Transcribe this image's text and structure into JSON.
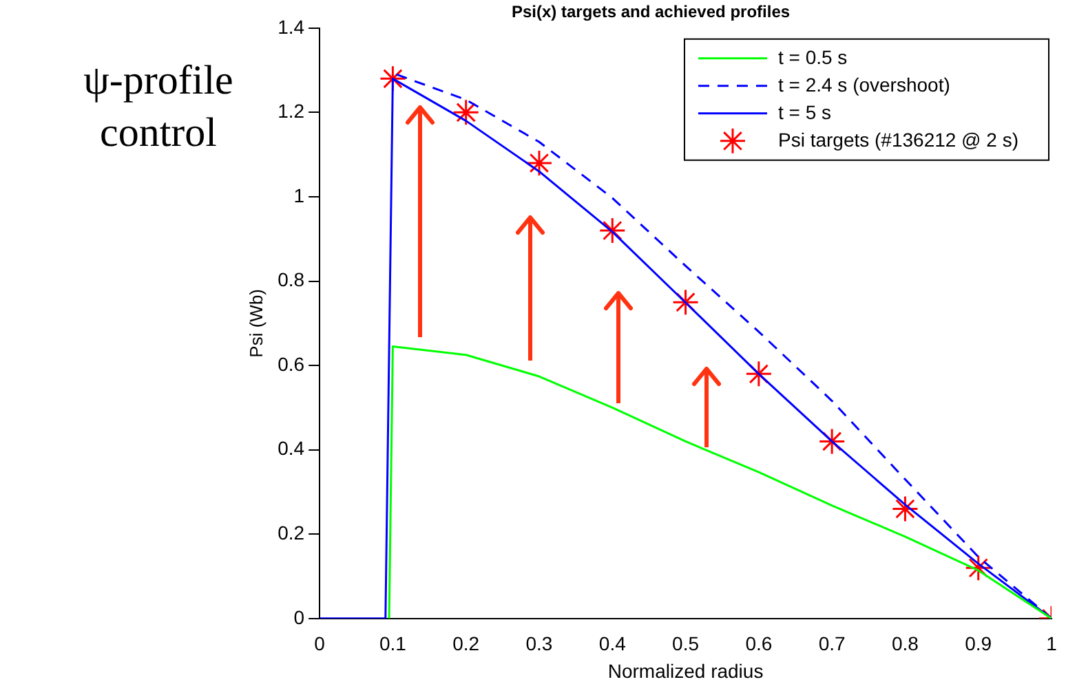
{
  "chart_data": {
    "type": "line",
    "title": "Psi(x) targets and achieved profiles",
    "xlabel": "Normalized radius",
    "ylabel": "Psi (Wb)",
    "annotations": [
      "ψ-profile control"
    ],
    "xlim": [
      0,
      1
    ],
    "xticks": [
      0,
      0.1,
      0.2,
      0.3,
      0.4,
      0.5,
      0.6,
      0.7,
      0.8,
      0.9,
      1
    ],
    "ylim": [
      0,
      1.4
    ],
    "yticks": [
      0,
      0.2,
      0.4,
      0.6,
      0.8,
      1,
      1.2,
      1.4
    ],
    "grid": false,
    "legend": "top right",
    "marker": "none",
    "series": [
      {
        "name": "t = 0.5 s",
        "color": "#00ff00",
        "line_style": "solid",
        "x": [
          0.095,
          0.1,
          0.2,
          0.3,
          0.4,
          0.5,
          0.6,
          0.7,
          0.8,
          0.9,
          1
        ],
        "values": [
          0,
          0.645,
          0.625,
          0.574,
          0.5,
          0.42,
          0.347,
          0.268,
          0.194,
          0.114,
          0
        ]
      },
      {
        "name": "t = 2.4 s (overshoot)",
        "color": "#0000ff",
        "line_style": "dashed",
        "x": [
          0.105,
          0.2,
          0.3,
          0.4,
          0.5,
          0.6,
          0.7,
          0.8,
          0.9,
          1
        ],
        "values": [
          1.29,
          1.23,
          1.13,
          0.997,
          0.836,
          0.68,
          0.516,
          0.33,
          0.146,
          0
        ]
      },
      {
        "name": "t = 5 s",
        "color": "#0000ff",
        "line_style": "solid",
        "x": [
          0,
          0.09,
          0.1,
          0.2,
          0.3,
          0.4,
          0.5,
          0.6,
          0.7,
          0.8,
          0.9,
          1
        ],
        "values": [
          0,
          0,
          1.28,
          1.18,
          1.06,
          0.917,
          0.749,
          0.58,
          0.42,
          0.27,
          0.13,
          0
        ]
      },
      {
        "name": "Psi targets (#136212 @ 2 s)",
        "type": "scatter",
        "marker": "cross",
        "color": "#ff0000",
        "x": [
          0.1,
          0.2,
          0.3,
          0.4,
          0.5,
          0.6,
          0.7,
          0.8,
          0.9,
          1
        ],
        "values": [
          1.28,
          1.2,
          1.08,
          0.92,
          0.75,
          0.58,
          0.42,
          0.26,
          0.12,
          0
        ]
      }
    ]
  }
}
